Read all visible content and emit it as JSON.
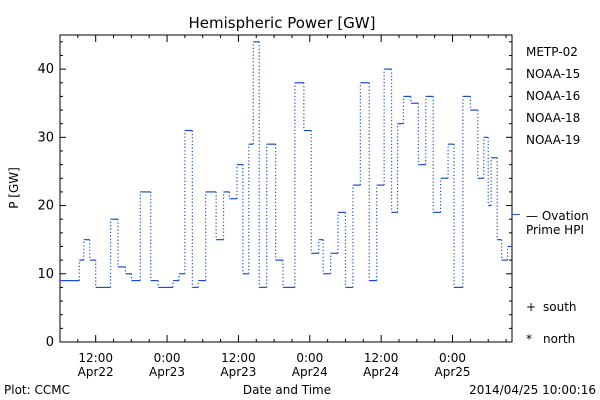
{
  "chart_data": {
    "type": "line",
    "title": "Hemispheric Power [GW]",
    "xlabel": "Date and Time",
    "ylabel": "P [GW]",
    "ylim": [
      0,
      45
    ],
    "xlim": [
      "2014-04-22 06:00",
      "2014-04-25 10:00"
    ],
    "yticks": [
      "0",
      "10",
      "20",
      "30",
      "40"
    ],
    "xticks": [
      {
        "x": "2014-04-22 12:00",
        "line1": "12:00",
        "line2": "Apr22"
      },
      {
        "x": "2014-04-23 00:00",
        "line1": "0:00",
        "line2": "Apr23"
      },
      {
        "x": "2014-04-23 12:00",
        "line1": "12:00",
        "line2": "Apr23"
      },
      {
        "x": "2014-04-24 00:00",
        "line1": "0:00",
        "line2": "Apr24"
      },
      {
        "x": "2014-04-24 12:00",
        "line1": "12:00",
        "line2": "Apr24"
      },
      {
        "x": "2014-04-25 00:00",
        "line1": "0:00",
        "line2": "Apr25"
      }
    ],
    "series": [
      {
        "name": "Ovation Prime HPI",
        "color": "#1a4fd0",
        "step": true,
        "x": [
          "2014-04-22 06:00",
          "2014-04-22 09:15",
          "2014-04-22 10:00",
          "2014-04-22 11:00",
          "2014-04-22 12:00",
          "2014-04-22 14:30",
          "2014-04-22 15:45",
          "2014-04-22 17:00",
          "2014-04-22 18:00",
          "2014-04-22 19:30",
          "2014-04-22 21:15",
          "2014-04-22 22:30",
          "2014-04-23 01:00",
          "2014-04-23 02:00",
          "2014-04-23 03:00",
          "2014-04-23 04:15",
          "2014-04-23 05:15",
          "2014-04-23 06:30",
          "2014-04-23 08:15",
          "2014-04-23 09:30",
          "2014-04-23 10:30",
          "2014-04-23 11:45",
          "2014-04-23 12:45",
          "2014-04-23 13:45",
          "2014-04-23 14:30",
          "2014-04-23 15:30",
          "2014-04-23 16:45",
          "2014-04-23 18:15",
          "2014-04-23 19:30",
          "2014-04-23 21:30",
          "2014-04-23 23:00",
          "2014-04-24 00:15",
          "2014-04-24 01:30",
          "2014-04-24 02:15",
          "2014-04-24 03:30",
          "2014-04-24 04:45",
          "2014-04-24 06:00",
          "2014-04-24 07:15",
          "2014-04-24 08:30",
          "2014-04-24 10:00",
          "2014-04-24 11:15",
          "2014-04-24 12:30",
          "2014-04-24 13:45",
          "2014-04-24 14:45",
          "2014-04-24 15:45",
          "2014-04-24 17:00",
          "2014-04-24 18:15",
          "2014-04-24 19:30",
          "2014-04-24 20:45",
          "2014-04-24 22:00",
          "2014-04-24 23:15",
          "2014-04-25 00:15",
          "2014-04-25 01:45",
          "2014-04-25 03:00",
          "2014-04-25 04:15",
          "2014-04-25 05:15",
          "2014-04-25 06:00",
          "2014-04-25 06:30",
          "2014-04-25 07:30",
          "2014-04-25 08:15",
          "2014-04-25 09:15"
        ],
        "y": [
          9,
          12,
          15,
          12,
          8,
          18,
          11,
          10,
          9,
          22,
          9,
          8,
          9,
          10,
          31,
          8,
          9,
          22,
          15,
          22,
          21,
          26,
          10,
          29,
          44,
          8,
          29,
          12,
          8,
          38,
          31,
          13,
          15,
          10,
          13,
          19,
          8,
          23,
          38,
          9,
          23,
          40,
          19,
          32,
          36,
          35,
          26,
          36,
          19,
          24,
          29,
          8,
          36,
          34,
          24,
          30,
          20,
          27,
          15,
          12,
          14
        ]
      }
    ],
    "legend": [
      {
        "label": "METP-02",
        "color": "#000000"
      },
      {
        "label": "NOAA-15",
        "color": "#1a33c8"
      },
      {
        "label": "NOAA-16",
        "color": "#1fb9d8"
      },
      {
        "label": "NOAA-18",
        "color": "#22c455"
      },
      {
        "label": "NOAA-19",
        "color": "#f0961e"
      }
    ],
    "hpi_label": {
      "line1": "— Ovation",
      "line2": "Prime HPI",
      "color": "#1a4fd0"
    },
    "markers": [
      {
        "symbol": "+",
        "label": "south"
      },
      {
        "symbol": "*",
        "label": "north"
      }
    ],
    "grid": false
  },
  "footer": {
    "left": "Plot: CCMC",
    "center": "Date and Time",
    "right": "2014/04/25 10:00:16"
  }
}
